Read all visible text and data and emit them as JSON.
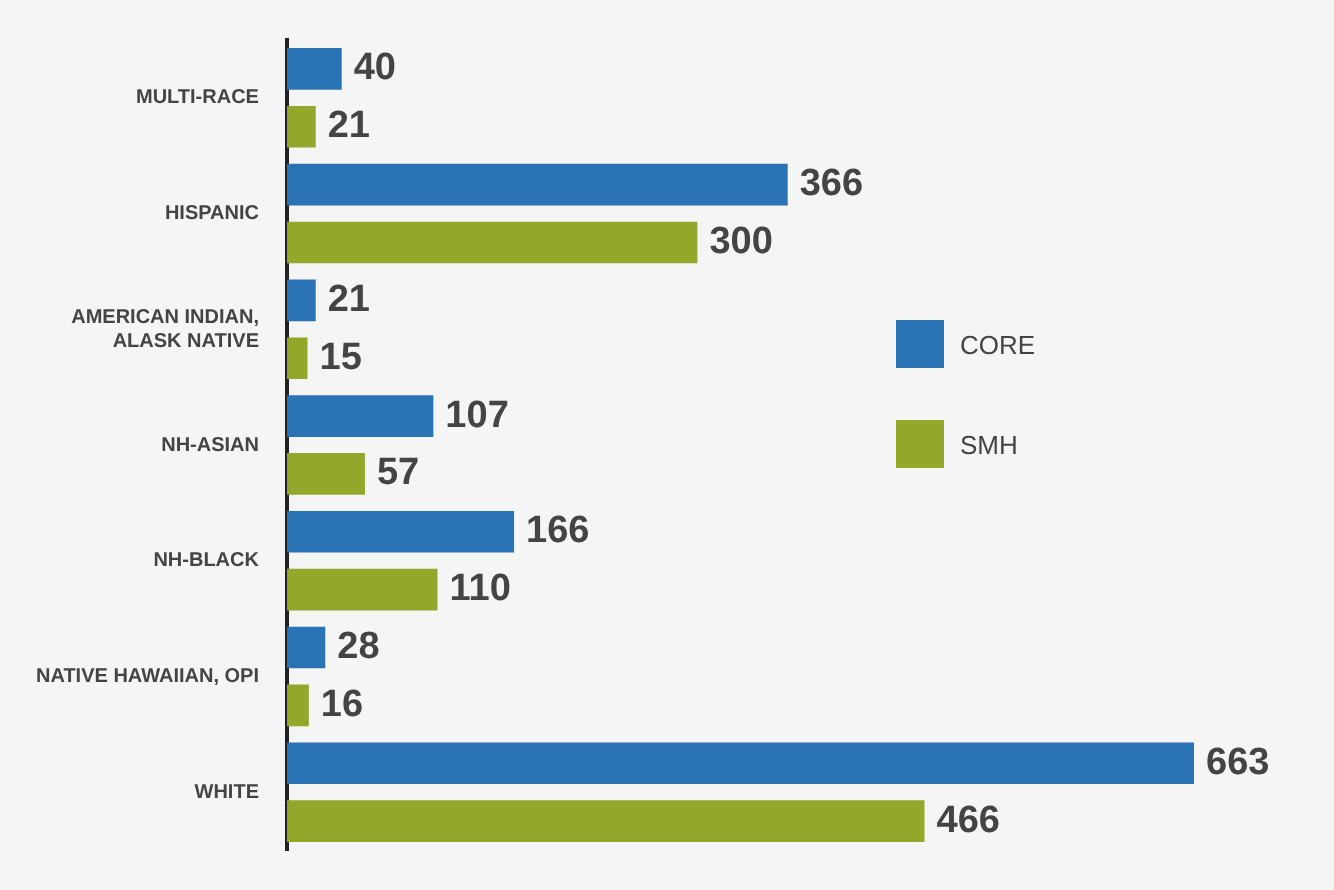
{
  "chart_data": {
    "type": "bar",
    "orientation": "horizontal",
    "categories": [
      "MULTI-RACE",
      "HISPANIC",
      "AMERICAN INDIAN, ALASK NATIVE",
      "NH-ASIAN",
      "NH-BLACK",
      "NATIVE HAWAIIAN, OPI",
      "WHITE"
    ],
    "series": [
      {
        "name": "CORE",
        "color": "#2a73b4",
        "values": [
          40,
          366,
          21,
          107,
          166,
          28,
          663
        ]
      },
      {
        "name": "SMH",
        "color": "#93a82b",
        "values": [
          21,
          300,
          15,
          57,
          110,
          16,
          466
        ]
      }
    ],
    "data_labels": true,
    "legend": "right",
    "grid": false
  }
}
